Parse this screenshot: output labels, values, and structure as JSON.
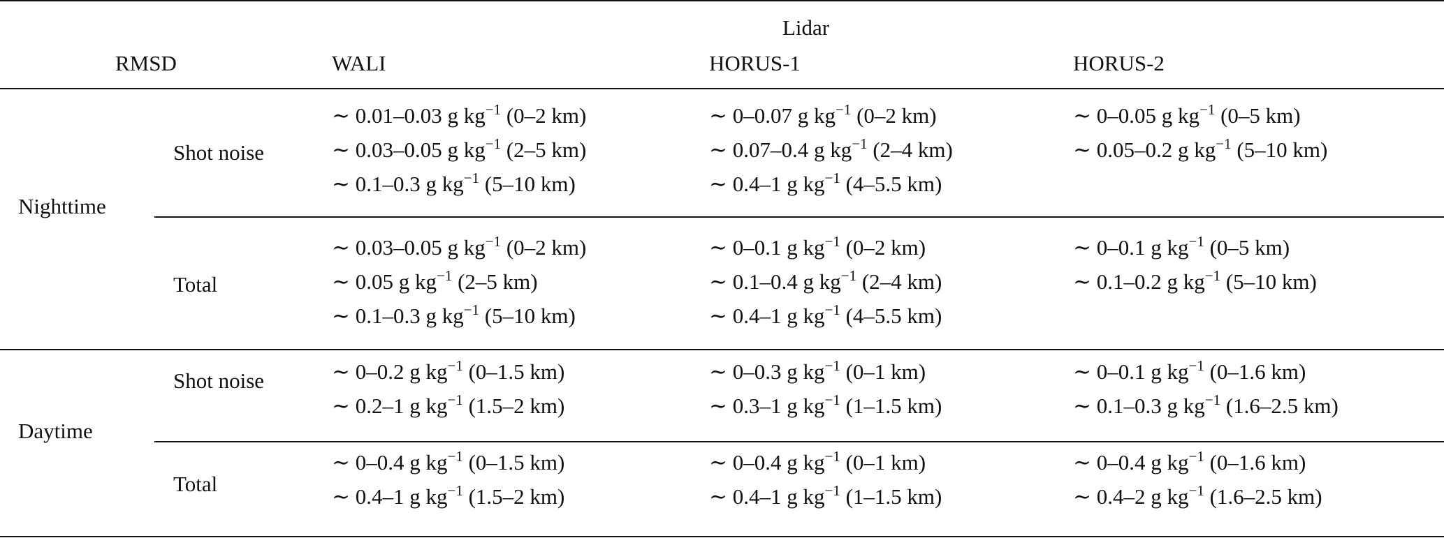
{
  "header": {
    "group_label": "Lidar",
    "rmsd_label": "RMSD",
    "columns": [
      "WALI",
      "HORUS-1",
      "HORUS-2"
    ]
  },
  "rows": [
    {
      "period": "Nighttime",
      "sub": [
        {
          "label": "Shot noise",
          "cells": [
            [
              "∼ 0.01–0.03 g kg|−1| (0–2 km)",
              "∼ 0.03–0.05 g kg|−1| (2–5 km)",
              "∼ 0.1–0.3 g kg|−1| (5–10 km)"
            ],
            [
              "∼ 0–0.07 g kg|−1| (0–2 km)",
              "∼ 0.07–0.4 g kg|−1| (2–4 km)",
              "∼ 0.4–1 g kg|−1| (4–5.5 km)"
            ],
            [
              "∼ 0–0.05 g kg|−1| (0–5 km)",
              "∼ 0.05–0.2 g kg|−1| (5–10 km)"
            ]
          ]
        },
        {
          "label": "Total",
          "cells": [
            [
              "∼ 0.03–0.05 g kg|−1| (0–2 km)",
              "∼ 0.05 g kg|−1| (2–5 km)",
              "∼ 0.1–0.3 g kg|−1| (5–10 km)"
            ],
            [
              "∼ 0–0.1 g kg|−1| (0–2 km)",
              "∼ 0.1–0.4 g kg|−1| (2–4 km)",
              "∼ 0.4–1 g kg|−1| (4–5.5 km)"
            ],
            [
              "∼ 0–0.1 g kg|−1| (0–5 km)",
              "∼ 0.1–0.2 g kg|−1| (5–10 km)"
            ]
          ]
        }
      ]
    },
    {
      "period": "Daytime",
      "sub": [
        {
          "label": "Shot noise",
          "cells": [
            [
              "∼ 0–0.2 g kg|−1| (0–1.5 km)",
              "∼ 0.2–1 g kg|−1| (1.5–2 km)"
            ],
            [
              "∼ 0–0.3 g kg|−1| (0–1 km)",
              "∼ 0.3–1 g kg|−1| (1–1.5 km)"
            ],
            [
              "∼ 0–0.1 g kg|−1| (0–1.6 km)",
              "∼ 0.1–0.3 g kg|−1| (1.6–2.5 km)"
            ]
          ]
        },
        {
          "label": "Total",
          "cells": [
            [
              "∼ 0–0.4 g kg|−1| (0–1.5 km)",
              "∼ 0.4–1 g kg|−1| (1.5–2 km)"
            ],
            [
              "∼ 0–0.4 g kg|−1| (0–1 km)",
              "∼ 0.4–1 g kg|−1| (1–1.5 km)"
            ],
            [
              "∼ 0–0.4 g kg|−1| (0–1.6 km)",
              "∼ 0.4–2 g kg|−1| (1.6–2.5 km)"
            ]
          ]
        }
      ]
    }
  ]
}
